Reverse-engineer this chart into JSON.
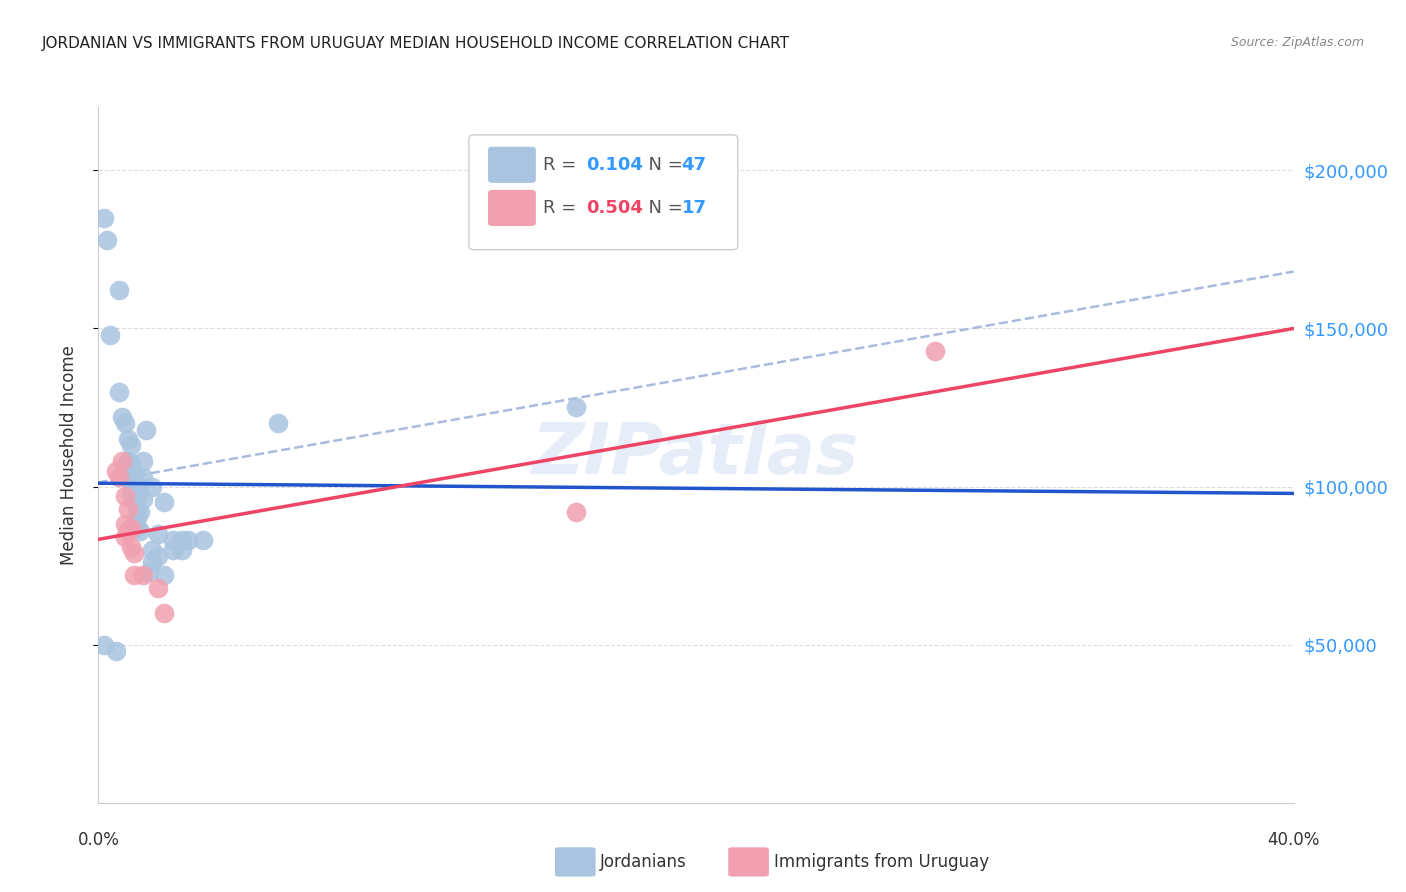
{
  "title": "JORDANIAN VS IMMIGRANTS FROM URUGUAY MEDIAN HOUSEHOLD INCOME CORRELATION CHART",
  "source": "Source: ZipAtlas.com",
  "ylabel": "Median Household Income",
  "legend_blue_r_val": "0.104",
  "legend_blue_n_val": "47",
  "legend_pink_r_val": "0.504",
  "legend_pink_n_val": "17",
  "legend_blue_label": "Jordanians",
  "legend_pink_label": "Immigrants from Uruguay",
  "ytick_labels": [
    "$50,000",
    "$100,000",
    "$150,000",
    "$200,000"
  ],
  "ytick_values": [
    50000,
    100000,
    150000,
    200000
  ],
  "watermark": "ZIPatlas",
  "blue_color": "#a8c4e0",
  "pink_color": "#f0a0b0",
  "blue_line_color": "#2255cc",
  "pink_line_color": "#ee4466",
  "dashed_line_color": "#aabbdd",
  "blue_scatter": [
    [
      0.002,
      185000
    ],
    [
      0.003,
      178000
    ],
    [
      0.004,
      148000
    ],
    [
      0.007,
      162000
    ],
    [
      0.007,
      130000
    ],
    [
      0.008,
      122000
    ],
    [
      0.009,
      120000
    ],
    [
      0.01,
      115000
    ],
    [
      0.01,
      108000
    ],
    [
      0.01,
      105000
    ],
    [
      0.011,
      113000
    ],
    [
      0.011,
      107000
    ],
    [
      0.011,
      101000
    ],
    [
      0.011,
      98000
    ],
    [
      0.012,
      103000
    ],
    [
      0.012,
      100000
    ],
    [
      0.012,
      95000
    ],
    [
      0.012,
      88000
    ],
    [
      0.013,
      97000
    ],
    [
      0.013,
      93000
    ],
    [
      0.013,
      90000
    ],
    [
      0.013,
      87000
    ],
    [
      0.014,
      100000
    ],
    [
      0.014,
      92000
    ],
    [
      0.014,
      86000
    ],
    [
      0.015,
      108000
    ],
    [
      0.015,
      103000
    ],
    [
      0.015,
      96000
    ],
    [
      0.016,
      118000
    ],
    [
      0.018,
      100000
    ],
    [
      0.018,
      80000
    ],
    [
      0.018,
      76000
    ],
    [
      0.02,
      85000
    ],
    [
      0.02,
      78000
    ],
    [
      0.022,
      95000
    ],
    [
      0.025,
      83000
    ],
    [
      0.025,
      80000
    ],
    [
      0.028,
      83000
    ],
    [
      0.028,
      80000
    ],
    [
      0.03,
      83000
    ],
    [
      0.035,
      83000
    ],
    [
      0.06,
      120000
    ],
    [
      0.16,
      125000
    ],
    [
      0.006,
      48000
    ],
    [
      0.002,
      50000
    ],
    [
      0.017,
      73000
    ],
    [
      0.022,
      72000
    ]
  ],
  "pink_scatter": [
    [
      0.006,
      105000
    ],
    [
      0.007,
      103000
    ],
    [
      0.008,
      108000
    ],
    [
      0.009,
      97000
    ],
    [
      0.009,
      88000
    ],
    [
      0.009,
      84000
    ],
    [
      0.01,
      93000
    ],
    [
      0.01,
      86000
    ],
    [
      0.011,
      87000
    ],
    [
      0.011,
      81000
    ],
    [
      0.012,
      79000
    ],
    [
      0.012,
      72000
    ],
    [
      0.015,
      72000
    ],
    [
      0.02,
      68000
    ],
    [
      0.16,
      92000
    ],
    [
      0.28,
      143000
    ],
    [
      0.022,
      60000
    ]
  ],
  "xlim": [
    0.0,
    0.4
  ],
  "ylim": [
    0,
    220000
  ],
  "background_color": "#ffffff",
  "grid_color": "#dddddd",
  "title_fontsize": 11,
  "source_fontsize": 9
}
